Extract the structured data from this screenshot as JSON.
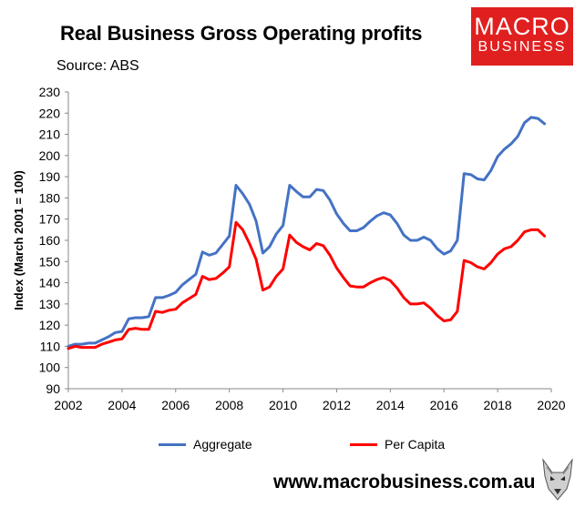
{
  "title": "Real Business Gross Operating profits",
  "source": "Source: ABS",
  "logo": {
    "line1": "MACRO",
    "line2": "BUSINESS"
  },
  "website": "www.macrobusiness.com.au",
  "colors": {
    "aggregate": "#4472c4",
    "per_capita": "#ff0000",
    "brand": "#e0201f"
  },
  "chart_data": {
    "type": "line",
    "title": "Real Business Gross Operating profits",
    "ylabel": "Index (March 2001 = 100)",
    "xlabel": "",
    "xlim": [
      2002,
      2020
    ],
    "ylim": [
      90,
      230
    ],
    "x_ticks": [
      2002,
      2004,
      2006,
      2008,
      2010,
      2012,
      2014,
      2016,
      2018,
      2020
    ],
    "y_ticks": [
      90,
      100,
      110,
      120,
      130,
      140,
      150,
      160,
      170,
      180,
      190,
      200,
      210,
      220,
      230
    ],
    "grid": false,
    "legend": "bottom",
    "x": [
      2002.0,
      2002.25,
      2002.5,
      2002.75,
      2003.0,
      2003.25,
      2003.5,
      2003.75,
      2004.0,
      2004.25,
      2004.5,
      2004.75,
      2005.0,
      2005.25,
      2005.5,
      2005.75,
      2006.0,
      2006.25,
      2006.5,
      2006.75,
      2007.0,
      2007.25,
      2007.5,
      2007.75,
      2008.0,
      2008.25,
      2008.5,
      2008.75,
      2009.0,
      2009.25,
      2009.5,
      2009.75,
      2010.0,
      2010.25,
      2010.5,
      2010.75,
      2011.0,
      2011.25,
      2011.5,
      2011.75,
      2012.0,
      2012.25,
      2012.5,
      2012.75,
      2013.0,
      2013.25,
      2013.5,
      2013.75,
      2014.0,
      2014.25,
      2014.5,
      2014.75,
      2015.0,
      2015.25,
      2015.5,
      2015.75,
      2016.0,
      2016.25,
      2016.5,
      2016.75,
      2017.0,
      2017.25,
      2017.5,
      2017.75,
      2018.0,
      2018.25,
      2018.5,
      2018.75,
      2019.0,
      2019.25,
      2019.5,
      2019.75
    ],
    "series": [
      {
        "name": "Aggregate",
        "color": "#4472c4",
        "values": [
          110,
          111,
          111,
          111.5,
          111.5,
          113,
          114.5,
          116.5,
          117,
          123,
          123.5,
          123.5,
          124,
          133,
          133,
          134,
          135.5,
          139,
          141.5,
          144,
          154.5,
          153,
          154,
          158,
          162,
          186,
          182,
          177,
          169,
          154,
          157,
          163,
          167,
          186,
          183,
          180.5,
          180.5,
          184,
          183.5,
          179,
          172.5,
          168,
          164.5,
          164.5,
          166,
          169,
          171.5,
          173,
          172,
          168,
          162.5,
          160,
          160,
          161.5,
          160,
          156,
          153.5,
          155,
          160,
          191.5,
          191,
          189,
          188.5,
          193,
          199.5,
          203,
          205.5,
          209,
          215.5,
          218,
          217.5,
          215
        ]
      },
      {
        "name": "Per Capita",
        "color": "#ff0000",
        "values": [
          109,
          110,
          109.5,
          109.5,
          109.5,
          111,
          112,
          113,
          113.5,
          118,
          118.5,
          118,
          118,
          126.5,
          126,
          127,
          127.5,
          130.5,
          132.5,
          134.5,
          143,
          141.5,
          142,
          144.5,
          147.5,
          168.5,
          165,
          158.5,
          151,
          136.5,
          138,
          143,
          146.5,
          162.5,
          159,
          157,
          155.5,
          158.5,
          157.5,
          153,
          147,
          142.5,
          138.5,
          138,
          138,
          140,
          141.5,
          142.5,
          141,
          137.5,
          133,
          130,
          130,
          130.5,
          128,
          124.5,
          122,
          122.5,
          126.5,
          150.5,
          149.5,
          147.5,
          146.5,
          149.5,
          153.5,
          156,
          157,
          160,
          164,
          165,
          165,
          162
        ]
      }
    ]
  }
}
